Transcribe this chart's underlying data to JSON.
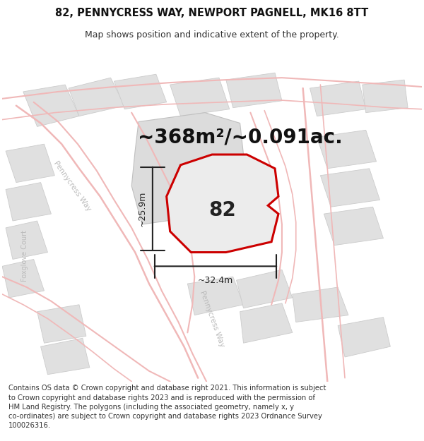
{
  "title_line1": "82, PENNYCRESS WAY, NEWPORT PAGNELL, MK16 8TT",
  "title_line2": "Map shows position and indicative extent of the property.",
  "area_text": "~368m²/~0.091ac.",
  "number_label": "82",
  "dim_height": "~25.9m",
  "dim_width": "~32.4m",
  "footer_text": "Contains OS data © Crown copyright and database right 2021. This information is subject to Crown copyright and database rights 2023 and is reproduced with the permission of HM Land Registry. The polygons (including the associated geometry, namely x, y co-ordinates) are subject to Crown copyright and database rights 2023 Ordnance Survey 100026316.",
  "bg_color": "#f2f2f2",
  "block_fill": "#e0e0e0",
  "block_edge": "#cccccc",
  "road_color": "#f0b8b8",
  "property_color": "#cc0000",
  "property_fill": "#ececec",
  "dim_color": "#222222",
  "street_label_color": "#bbbbbb",
  "title_fontsize": 10.5,
  "subtitle_fontsize": 9,
  "area_fontsize": 20,
  "number_fontsize": 20,
  "dim_fontsize": 9,
  "footer_fontsize": 7.2
}
